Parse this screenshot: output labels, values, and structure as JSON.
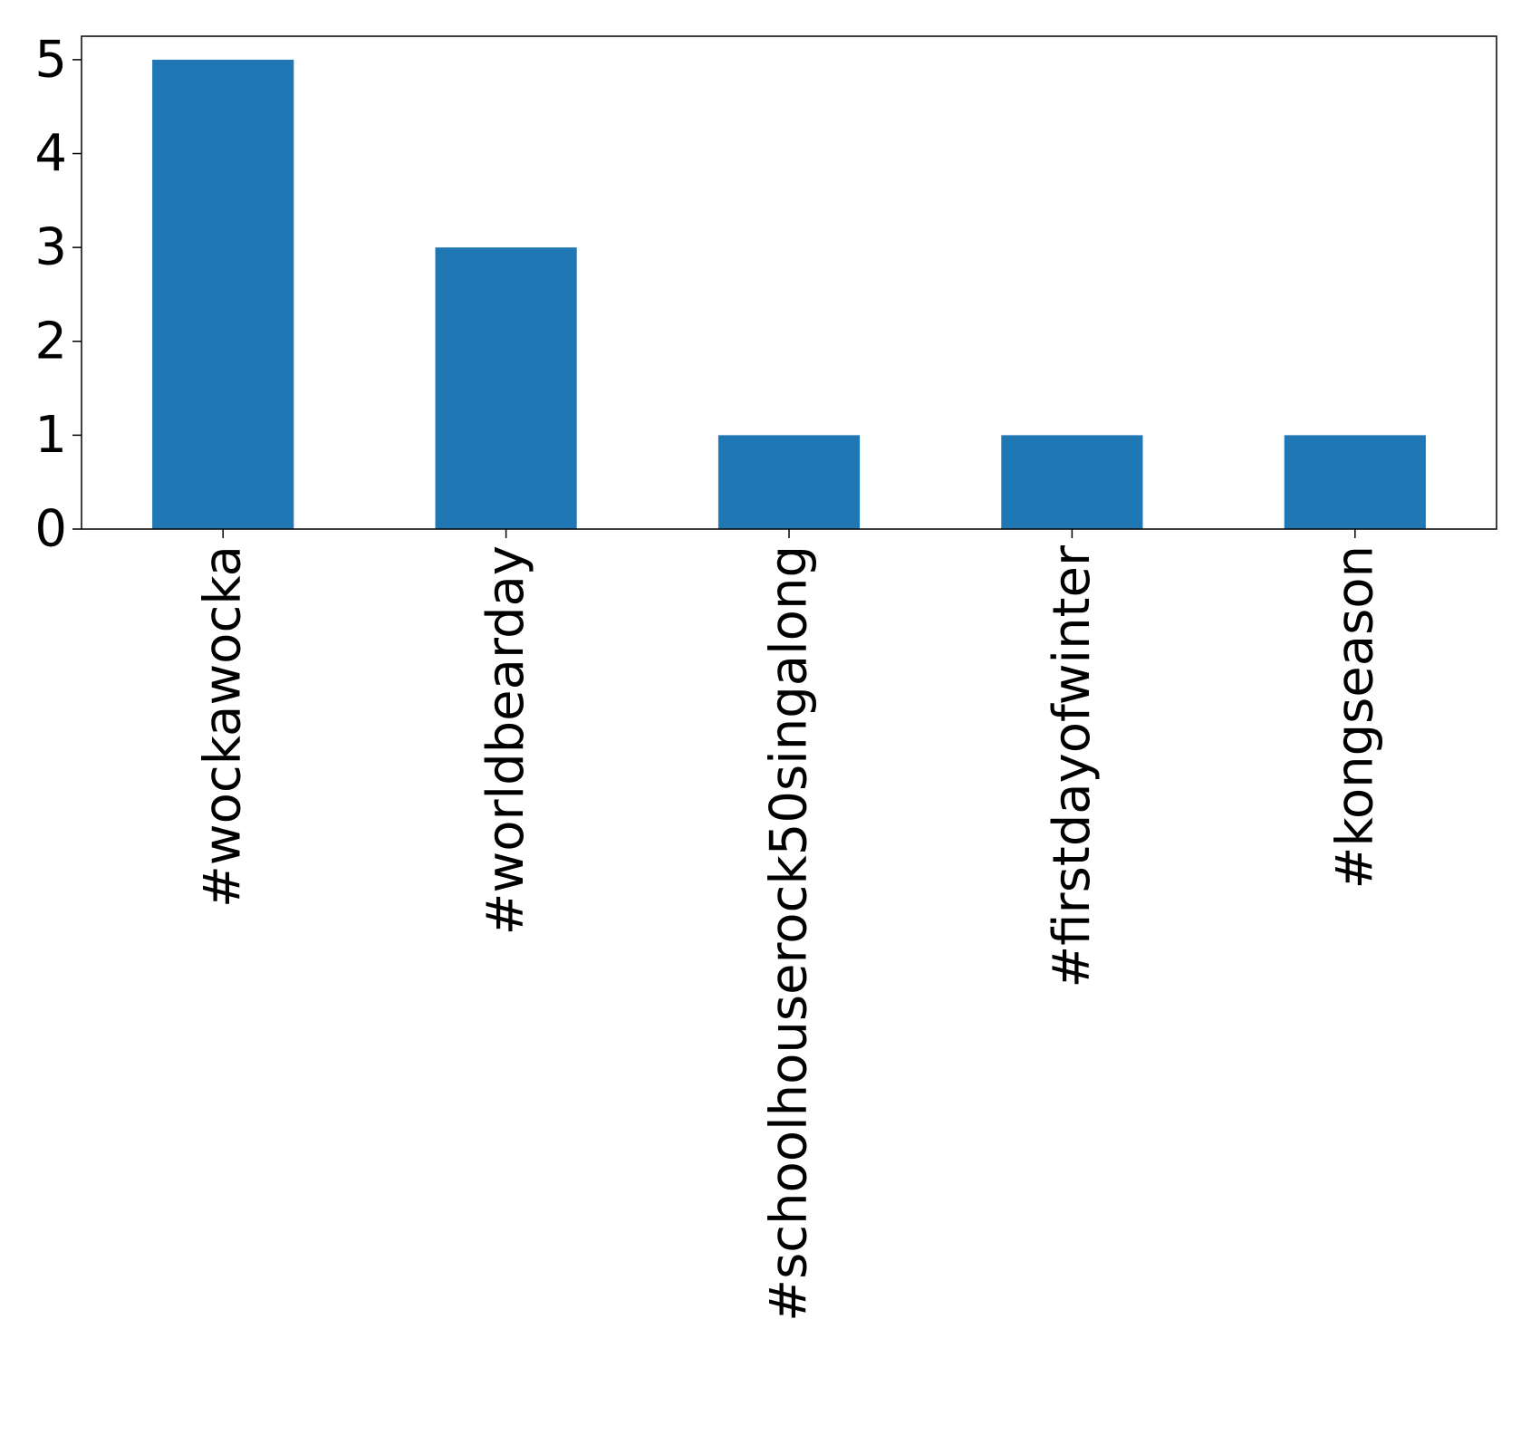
{
  "chart_data": {
    "type": "bar",
    "categories": [
      "#wockawocka",
      "#worldbearday",
      "#schoolhouserock50singalong",
      "#firstdayofwinter",
      "#kongseason"
    ],
    "values": [
      5,
      3,
      1,
      1,
      1
    ],
    "title": "",
    "xlabel": "",
    "ylabel": "",
    "ylim": [
      0,
      5.25
    ],
    "yticks": [
      0,
      1,
      2,
      3,
      4,
      5
    ],
    "grid": false,
    "bar_color": "#1f77b4",
    "x_tick_rotation": "vertical"
  }
}
